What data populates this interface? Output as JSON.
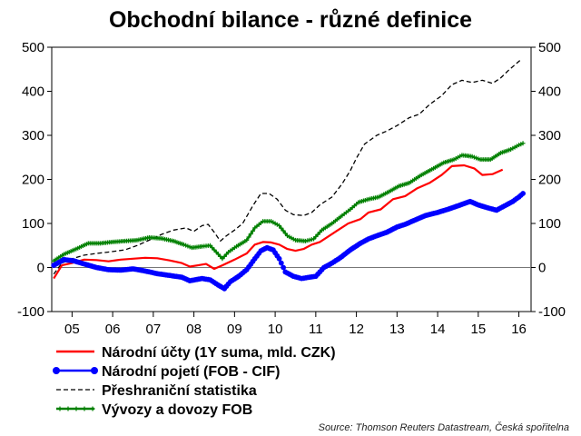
{
  "chart_data": {
    "type": "line",
    "title": "Obchodní bilance - různé definice",
    "xlabel": "",
    "ylabel": "",
    "x_tick_labels": [
      "05",
      "06",
      "07",
      "08",
      "09",
      "10",
      "11",
      "12",
      "13",
      "14",
      "15",
      "16"
    ],
    "x_ticks": [
      2005,
      2006,
      2007,
      2008,
      2009,
      2010,
      2011,
      2012,
      2013,
      2014,
      2015,
      2016
    ],
    "xlim": [
      2004.5,
      2016.3
    ],
    "ylim": [
      -100,
      500
    ],
    "y_ticks": [
      -100,
      0,
      100,
      200,
      300,
      400,
      500
    ],
    "grid": false,
    "legend_position": "bottom-left",
    "source": "Source: Thomson Reuters Datastream, Česká spořitelna",
    "series": [
      {
        "name": "Národní účty (1Y suma, mld. CZK)",
        "color": "#ff0000",
        "style": "solid",
        "marker": "none",
        "points": [
          [
            2004.55,
            -25
          ],
          [
            2004.75,
            5
          ],
          [
            2005.0,
            10
          ],
          [
            2005.3,
            18
          ],
          [
            2005.6,
            17
          ],
          [
            2005.9,
            14
          ],
          [
            2006.2,
            18
          ],
          [
            2006.5,
            20
          ],
          [
            2006.8,
            22
          ],
          [
            2007.1,
            21
          ],
          [
            2007.4,
            16
          ],
          [
            2007.7,
            10
          ],
          [
            2007.9,
            2
          ],
          [
            2008.1,
            5
          ],
          [
            2008.3,
            8
          ],
          [
            2008.5,
            -3
          ],
          [
            2008.7,
            5
          ],
          [
            2009.0,
            18
          ],
          [
            2009.3,
            32
          ],
          [
            2009.5,
            52
          ],
          [
            2009.7,
            58
          ],
          [
            2009.9,
            57
          ],
          [
            2010.1,
            52
          ],
          [
            2010.3,
            42
          ],
          [
            2010.5,
            38
          ],
          [
            2010.7,
            42
          ],
          [
            2010.9,
            52
          ],
          [
            2011.1,
            58
          ],
          [
            2011.3,
            70
          ],
          [
            2011.5,
            82
          ],
          [
            2011.8,
            100
          ],
          [
            2012.1,
            110
          ],
          [
            2012.3,
            125
          ],
          [
            2012.6,
            132
          ],
          [
            2012.9,
            155
          ],
          [
            2013.2,
            162
          ],
          [
            2013.5,
            180
          ],
          [
            2013.8,
            192
          ],
          [
            2014.1,
            210
          ],
          [
            2014.35,
            230
          ],
          [
            2014.65,
            232
          ],
          [
            2014.9,
            225
          ],
          [
            2015.1,
            210
          ],
          [
            2015.35,
            212
          ],
          [
            2015.6,
            222
          ]
        ]
      },
      {
        "name": "Národní pojetí (FOB - CIF)",
        "color": "#0000ff",
        "style": "solid",
        "marker": "circle",
        "points": [
          [
            2004.55,
            5
          ],
          [
            2004.8,
            18
          ],
          [
            2005.05,
            15
          ],
          [
            2005.3,
            8
          ],
          [
            2005.6,
            0
          ],
          [
            2005.9,
            -5
          ],
          [
            2006.2,
            -6
          ],
          [
            2006.5,
            -3
          ],
          [
            2006.8,
            -8
          ],
          [
            2007.1,
            -14
          ],
          [
            2007.4,
            -18
          ],
          [
            2007.7,
            -22
          ],
          [
            2007.9,
            -30
          ],
          [
            2008.2,
            -25
          ],
          [
            2008.4,
            -28
          ],
          [
            2008.6,
            -40
          ],
          [
            2008.75,
            -48
          ],
          [
            2008.9,
            -32
          ],
          [
            2009.1,
            -20
          ],
          [
            2009.3,
            -5
          ],
          [
            2009.5,
            20
          ],
          [
            2009.65,
            38
          ],
          [
            2009.8,
            45
          ],
          [
            2009.95,
            40
          ],
          [
            2010.1,
            20
          ],
          [
            2010.25,
            -10
          ],
          [
            2010.45,
            -20
          ],
          [
            2010.65,
            -25
          ],
          [
            2010.85,
            -22
          ],
          [
            2011.0,
            -20
          ],
          [
            2011.2,
            0
          ],
          [
            2011.4,
            10
          ],
          [
            2011.6,
            22
          ],
          [
            2011.85,
            40
          ],
          [
            2012.1,
            55
          ],
          [
            2012.3,
            65
          ],
          [
            2012.5,
            72
          ],
          [
            2012.75,
            80
          ],
          [
            2013.0,
            92
          ],
          [
            2013.2,
            98
          ],
          [
            2013.45,
            108
          ],
          [
            2013.7,
            118
          ],
          [
            2014.0,
            125
          ],
          [
            2014.25,
            132
          ],
          [
            2014.5,
            140
          ],
          [
            2014.8,
            150
          ],
          [
            2015.0,
            142
          ],
          [
            2015.25,
            135
          ],
          [
            2015.45,
            130
          ],
          [
            2015.65,
            140
          ],
          [
            2015.85,
            150
          ],
          [
            2016.0,
            160
          ],
          [
            2016.1,
            168
          ]
        ]
      },
      {
        "name": "Přeshraniční statistika",
        "color": "#000000",
        "style": "dashed",
        "marker": "none",
        "points": [
          [
            2004.55,
            -15
          ],
          [
            2004.75,
            10
          ],
          [
            2005.0,
            20
          ],
          [
            2005.3,
            28
          ],
          [
            2005.6,
            32
          ],
          [
            2005.9,
            35
          ],
          [
            2006.3,
            40
          ],
          [
            2006.6,
            50
          ],
          [
            2006.9,
            62
          ],
          [
            2007.2,
            75
          ],
          [
            2007.5,
            85
          ],
          [
            2007.8,
            90
          ],
          [
            2008.0,
            82
          ],
          [
            2008.2,
            95
          ],
          [
            2008.35,
            98
          ],
          [
            2008.5,
            80
          ],
          [
            2008.65,
            60
          ],
          [
            2008.8,
            72
          ],
          [
            2009.0,
            85
          ],
          [
            2009.2,
            100
          ],
          [
            2009.45,
            140
          ],
          [
            2009.65,
            168
          ],
          [
            2009.85,
            168
          ],
          [
            2010.05,
            155
          ],
          [
            2010.25,
            130
          ],
          [
            2010.45,
            120
          ],
          [
            2010.7,
            118
          ],
          [
            2010.9,
            125
          ],
          [
            2011.1,
            142
          ],
          [
            2011.4,
            160
          ],
          [
            2011.65,
            190
          ],
          [
            2011.85,
            220
          ],
          [
            2012.0,
            248
          ],
          [
            2012.2,
            280
          ],
          [
            2012.5,
            300
          ],
          [
            2012.75,
            310
          ],
          [
            2013.0,
            322
          ],
          [
            2013.3,
            340
          ],
          [
            2013.55,
            348
          ],
          [
            2013.8,
            370
          ],
          [
            2014.1,
            390
          ],
          [
            2014.35,
            415
          ],
          [
            2014.6,
            425
          ],
          [
            2014.85,
            420
          ],
          [
            2015.1,
            425
          ],
          [
            2015.35,
            418
          ],
          [
            2015.55,
            430
          ],
          [
            2015.75,
            448
          ],
          [
            2015.9,
            460
          ],
          [
            2016.05,
            472
          ]
        ]
      },
      {
        "name": "Vývozy a dovozy FOB",
        "color": "#008000",
        "style": "solid",
        "marker": "plus",
        "points": [
          [
            2004.55,
            15
          ],
          [
            2004.8,
            30
          ],
          [
            2005.1,
            42
          ],
          [
            2005.4,
            55
          ],
          [
            2005.7,
            55
          ],
          [
            2006.0,
            58
          ],
          [
            2006.3,
            60
          ],
          [
            2006.6,
            62
          ],
          [
            2006.9,
            68
          ],
          [
            2007.2,
            66
          ],
          [
            2007.5,
            60
          ],
          [
            2007.75,
            52
          ],
          [
            2007.95,
            45
          ],
          [
            2008.2,
            48
          ],
          [
            2008.4,
            50
          ],
          [
            2008.55,
            35
          ],
          [
            2008.7,
            20
          ],
          [
            2008.85,
            35
          ],
          [
            2009.05,
            48
          ],
          [
            2009.3,
            62
          ],
          [
            2009.5,
            90
          ],
          [
            2009.7,
            105
          ],
          [
            2009.9,
            105
          ],
          [
            2010.1,
            95
          ],
          [
            2010.3,
            72
          ],
          [
            2010.5,
            62
          ],
          [
            2010.75,
            60
          ],
          [
            2010.95,
            65
          ],
          [
            2011.15,
            85
          ],
          [
            2011.4,
            100
          ],
          [
            2011.65,
            118
          ],
          [
            2011.85,
            132
          ],
          [
            2012.05,
            148
          ],
          [
            2012.3,
            155
          ],
          [
            2012.55,
            160
          ],
          [
            2012.8,
            172
          ],
          [
            2013.05,
            185
          ],
          [
            2013.3,
            192
          ],
          [
            2013.6,
            210
          ],
          [
            2013.9,
            225
          ],
          [
            2014.15,
            238
          ],
          [
            2014.4,
            245
          ],
          [
            2014.6,
            255
          ],
          [
            2014.85,
            252
          ],
          [
            2015.05,
            245
          ],
          [
            2015.3,
            245
          ],
          [
            2015.55,
            260
          ],
          [
            2015.8,
            268
          ],
          [
            2016.0,
            278
          ],
          [
            2016.1,
            282
          ]
        ]
      }
    ]
  }
}
